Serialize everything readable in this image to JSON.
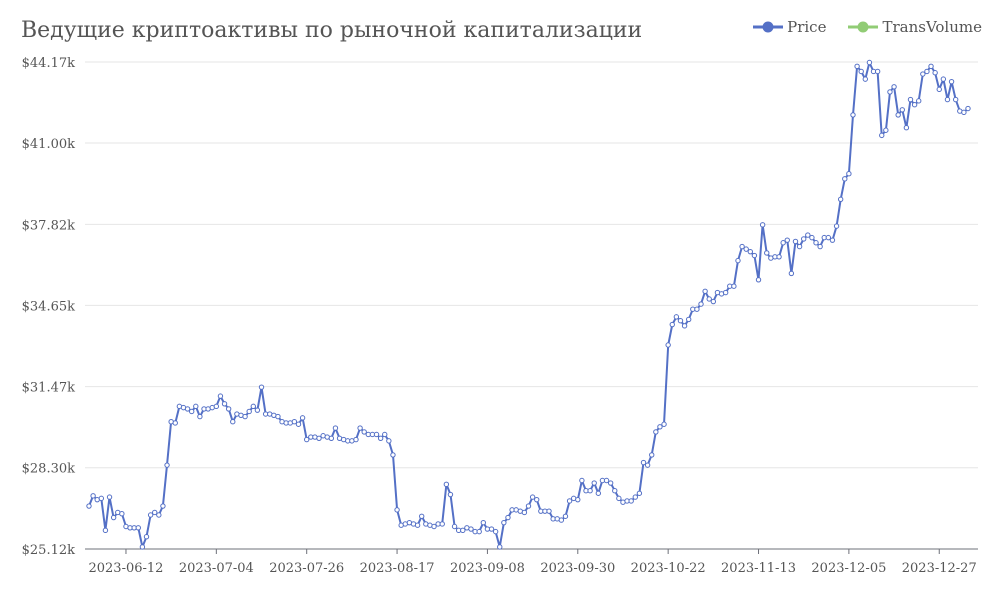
{
  "chart_data": {
    "type": "line",
    "title": "Ведущие криптоактивы по рыночной капитализации",
    "xlabel": "",
    "ylabel": "",
    "ylim": [
      25120,
      44170
    ],
    "y_ticks": [
      "$25.12k",
      "$28.30k",
      "$31.47k",
      "$34.65k",
      "$37.82k",
      "$41.00k",
      "$44.17k"
    ],
    "y_tick_values": [
      25120,
      28300,
      31470,
      34650,
      37820,
      41000,
      44170
    ],
    "x_ticks": [
      "2023-06-12",
      "2023-07-04",
      "2023-07-26",
      "2023-08-17",
      "2023-09-08",
      "2023-09-30",
      "2023-10-22",
      "2023-11-13",
      "2023-12-05",
      "2023-12-27"
    ],
    "x_tick_day_index": [
      9,
      31,
      53,
      75,
      97,
      119,
      141,
      163,
      185,
      207
    ],
    "x_start_date": "2023-06-03",
    "grid": true,
    "legend": "top-right",
    "series": [
      {
        "name": "Price",
        "color": "#5470c6",
        "values": [
          26800,
          27200,
          27050,
          27100,
          25850,
          27150,
          26350,
          26550,
          26500,
          26000,
          25950,
          25950,
          25950,
          25200,
          25600,
          26450,
          26550,
          26450,
          26800,
          28400,
          30100,
          30050,
          30700,
          30650,
          30600,
          30500,
          30700,
          30300,
          30600,
          30600,
          30650,
          30700,
          31100,
          30800,
          30600,
          30100,
          30400,
          30350,
          30300,
          30500,
          30700,
          30550,
          31450,
          30400,
          30400,
          30350,
          30300,
          30100,
          30050,
          30050,
          30100,
          30000,
          30250,
          29400,
          29500,
          29500,
          29450,
          29550,
          29500,
          29450,
          29850,
          29450,
          29400,
          29350,
          29350,
          29400,
          29850,
          29700,
          29600,
          29600,
          29600,
          29450,
          29600,
          29350,
          28800,
          26650,
          26050,
          26100,
          26150,
          26100,
          26050,
          26400,
          26100,
          26050,
          26000,
          26100,
          26100,
          27650,
          27250,
          26000,
          25850,
          25850,
          25950,
          25900,
          25800,
          25800,
          26150,
          25900,
          25900,
          25800,
          25200,
          26150,
          26350,
          26650,
          26650,
          26600,
          26550,
          26800,
          27150,
          27050,
          26600,
          26600,
          26600,
          26300,
          26300,
          26250,
          26400,
          27000,
          27100,
          27050,
          27800,
          27400,
          27400,
          27700,
          27300,
          27800,
          27800,
          27700,
          27400,
          27100,
          26950,
          27000,
          27000,
          27150,
          27300,
          28500,
          28400,
          28800,
          29700,
          29900,
          30000,
          33100,
          33900,
          34200,
          34050,
          33850,
          34100,
          34500,
          34500,
          34700,
          35200,
          34900,
          34800,
          35150,
          35100,
          35150,
          35400,
          35400,
          36400,
          36950,
          36850,
          36750,
          36600,
          35650,
          37800,
          36700,
          36500,
          36550,
          36550,
          37100,
          37200,
          35900,
          37150,
          36950,
          37250,
          37400,
          37300,
          37100,
          36950,
          37300,
          37300,
          37200,
          37750,
          38800,
          39600,
          39800,
          42100,
          44000,
          43800,
          43500,
          44150,
          43800,
          43800,
          41300,
          41500,
          43000,
          43200,
          42100,
          42300,
          41600,
          42700,
          42500,
          42650,
          43700,
          43800,
          44000,
          43750,
          43100,
          43500,
          42700,
          43400,
          42700,
          42250,
          42200,
          42350
        ]
      },
      {
        "name": "TransVolume",
        "color": "#91cc75",
        "values": []
      }
    ]
  }
}
